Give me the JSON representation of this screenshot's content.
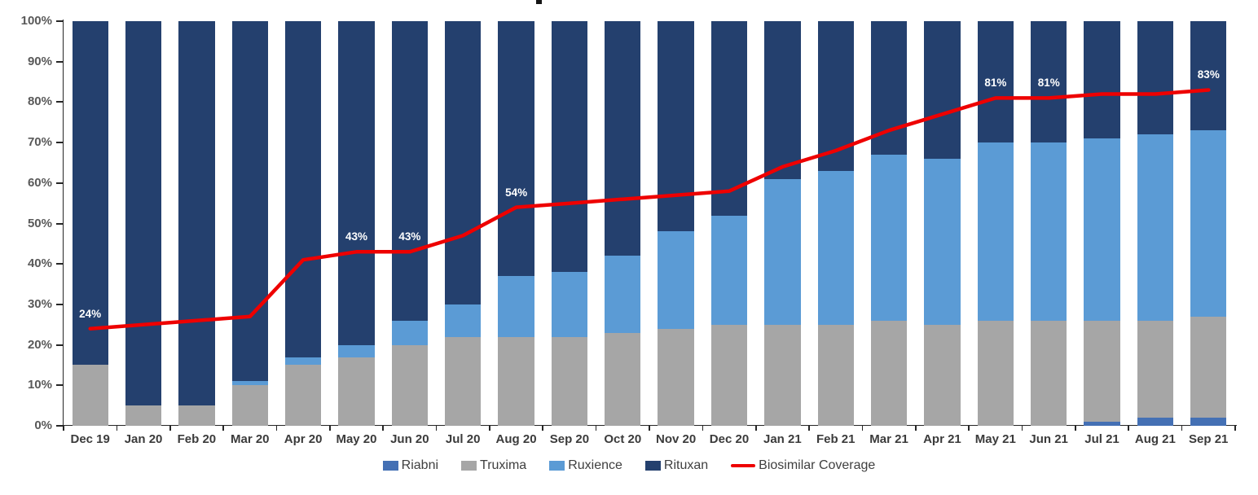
{
  "legend": {
    "items": [
      {
        "label": "Riabni",
        "color": "#4470B4",
        "type": "square"
      },
      {
        "label": "Truxima",
        "color": "#A6A6A6",
        "type": "square"
      },
      {
        "label": "Ruxience",
        "color": "#5B9BD5",
        "type": "square"
      },
      {
        "label": "Rituxan",
        "color": "#24406E",
        "type": "square"
      },
      {
        "label": "Biosimilar Coverage",
        "color": "#EE0000",
        "type": "line"
      }
    ]
  },
  "y_axis": {
    "tick_labels": [
      "0%",
      "10%",
      "20%",
      "30%",
      "40%",
      "50%",
      "60%",
      "70%",
      "80%",
      "90%",
      "100%"
    ],
    "min": 0,
    "max": 100
  },
  "chart_data": {
    "type": "bar",
    "stacked": true,
    "grid": false,
    "legend_position": "bottom",
    "ylim": [
      0,
      100
    ],
    "ytick_format": "percent",
    "categories": [
      "Dec 19",
      "Jan 20",
      "Feb 20",
      "Mar 20",
      "Apr 20",
      "May 20",
      "Jun 20",
      "Jul 20",
      "Aug 20",
      "Sep 20",
      "Oct 20",
      "Nov 20",
      "Dec 20",
      "Jan 21",
      "Feb 21",
      "Mar 21",
      "Apr 21",
      "May 21",
      "Jun 21",
      "Jul 21",
      "Aug 21",
      "Sep 21"
    ],
    "series": [
      {
        "name": "Riabni",
        "color": "#4470B4",
        "values": [
          0,
          0,
          0,
          0,
          0,
          0,
          0,
          0,
          0,
          0,
          0,
          0,
          0,
          0,
          0,
          0,
          0,
          0,
          0,
          1,
          2,
          2
        ]
      },
      {
        "name": "Truxima",
        "color": "#A6A6A6",
        "values": [
          15,
          5,
          5,
          10,
          15,
          17,
          20,
          22,
          22,
          22,
          23,
          24,
          25,
          25,
          25,
          26,
          25,
          26,
          26,
          25,
          24,
          25
        ]
      },
      {
        "name": "Ruxience",
        "color": "#5B9BD5",
        "values": [
          0,
          0,
          0,
          1,
          2,
          3,
          6,
          8,
          15,
          16,
          19,
          24,
          27,
          36,
          38,
          41,
          41,
          44,
          44,
          45,
          46,
          46
        ]
      },
      {
        "name": "Rituxan",
        "color": "#24406E",
        "values": [
          85,
          95,
          95,
          89,
          83,
          80,
          74,
          70,
          63,
          62,
          58,
          52,
          48,
          39,
          37,
          33,
          34,
          30,
          30,
          29,
          28,
          27
        ]
      }
    ],
    "line_series": {
      "name": "Biosimilar Coverage",
      "color": "#EE0000",
      "values": [
        24,
        25,
        26,
        27,
        41,
        43,
        43,
        47,
        54,
        55,
        56,
        57,
        58,
        64,
        68,
        73,
        77,
        81,
        81,
        82,
        82,
        83
      ]
    },
    "line_labels": [
      {
        "index": 0,
        "text": "24%"
      },
      {
        "index": 5,
        "text": "43%"
      },
      {
        "index": 6,
        "text": "43%"
      },
      {
        "index": 8,
        "text": "54%"
      },
      {
        "index": 17,
        "text": "81%"
      },
      {
        "index": 18,
        "text": "81%"
      },
      {
        "index": 21,
        "text": "83%"
      }
    ]
  }
}
